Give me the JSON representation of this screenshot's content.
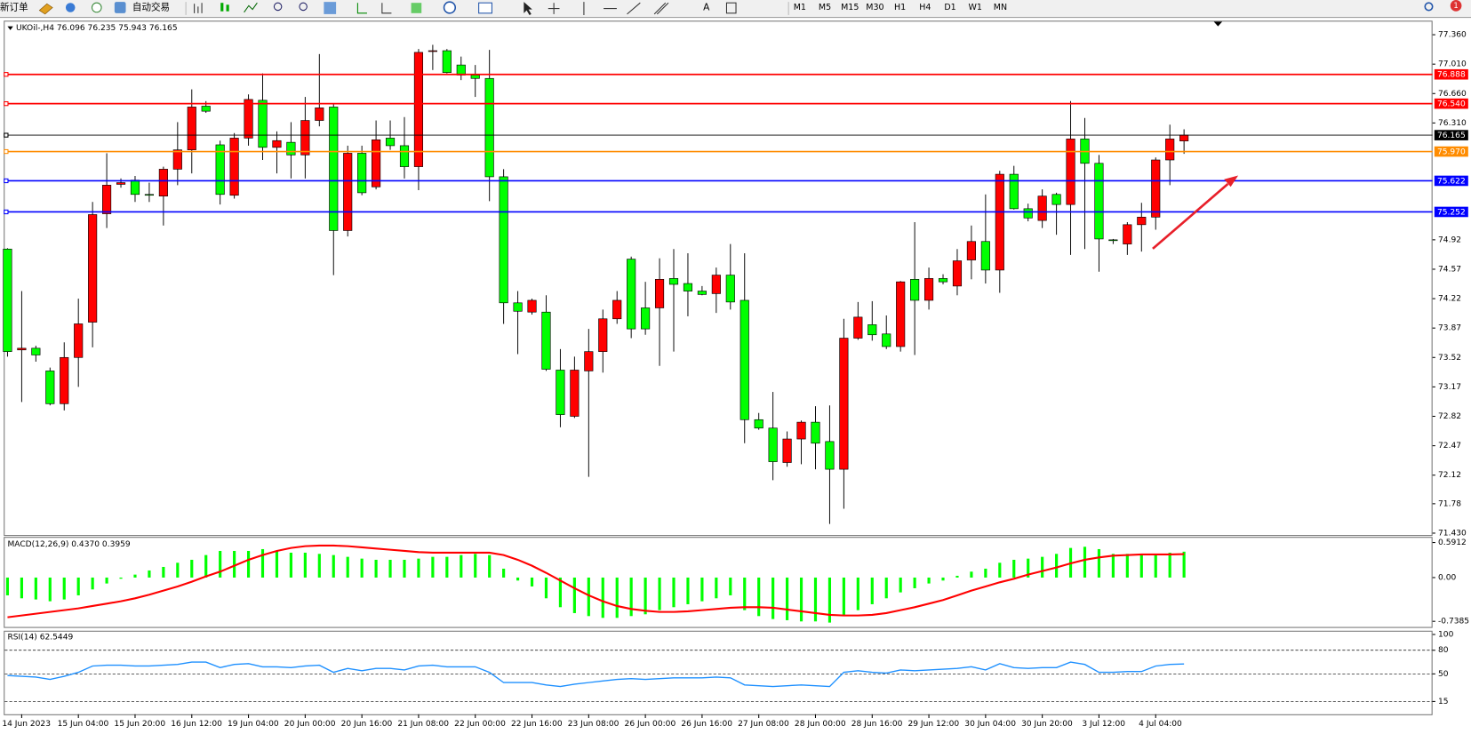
{
  "toolbar": {
    "new_order": "新订单",
    "auto_trading": "自动交易",
    "timeframes": [
      "M1",
      "M5",
      "M15",
      "M30",
      "H1",
      "H4",
      "D1",
      "W1",
      "MN"
    ],
    "badge": "1"
  },
  "chart_data": [
    {
      "type": "candlestick",
      "title": "UKOil-,H4 76.096 76.235 75.943 76.165",
      "categories": [
        null,
        "14 Jun 2023",
        null,
        null,
        null,
        "15 Jun 04:00",
        null,
        null,
        null,
        "15 Jun 20:00",
        null,
        null,
        null,
        "16 Jun 12:00",
        null,
        null,
        null,
        "19 Jun 04:00",
        null,
        null,
        null,
        "20 Jun 00:00",
        null,
        null,
        null,
        "20 Jun 16:00",
        null,
        null,
        null,
        "21 Jun 08:00",
        null,
        null,
        null,
        "22 Jun 00:00",
        null,
        null,
        null,
        "22 Jun 16:00",
        null,
        null,
        null,
        "23 Jun 08:00",
        null,
        null,
        null,
        "26 Jun 00:00",
        null,
        null,
        null,
        "26 Jun 16:00",
        null,
        null,
        null,
        "27 Jun 08:00",
        null,
        null,
        null,
        "28 Jun 00:00",
        null,
        null,
        null,
        "28 Jun 16:00",
        null,
        null,
        null,
        "29 Jun 12:00",
        null,
        null,
        null,
        "30 Jun 04:00",
        null,
        null,
        null,
        "30 Jun 20:00",
        null,
        null,
        null,
        "3 Jul 12:00",
        null,
        null,
        null,
        "4 Jul 04:00",
        null,
        null
      ],
      "open": [
        74.81,
        73.61,
        73.63,
        73.36,
        72.97,
        73.52,
        73.94,
        75.23,
        75.58,
        75.63,
        75.46,
        75.44,
        75.76,
        75.99,
        76.51,
        76.05,
        75.45,
        76.13,
        76.58,
        76.02,
        76.08,
        75.93,
        76.34,
        76.5,
        75.03,
        75.95,
        75.55,
        76.13,
        76.04,
        75.79,
        77.16,
        77.17,
        77.0,
        76.88,
        76.84,
        75.67,
        74.17,
        74.06,
        74.06,
        73.37,
        72.82,
        73.36,
        73.59,
        73.98,
        74.69,
        74.11,
        74.11,
        74.46,
        74.4,
        74.31,
        74.28,
        74.5,
        74.2,
        72.78,
        72.68,
        72.27,
        72.55,
        72.75,
        72.52,
        72.19,
        73.75,
        73.91,
        73.8,
        73.65,
        74.45,
        74.2,
        74.46,
        74.37,
        74.68,
        74.9,
        74.56,
        75.7,
        75.29,
        75.15,
        75.46,
        75.34,
        76.12,
        75.83,
        74.92,
        74.87,
        75.1,
        75.19,
        75.87,
        76.096
      ],
      "high": [
        74.82,
        74.31,
        73.66,
        73.4,
        73.7,
        74.22,
        75.37,
        75.95,
        75.65,
        75.68,
        75.6,
        75.79,
        76.32,
        76.71,
        76.57,
        76.1,
        76.19,
        76.65,
        76.9,
        76.21,
        76.32,
        76.62,
        77.13,
        76.54,
        76.04,
        76.04,
        76.34,
        76.34,
        76.38,
        77.19,
        77.24,
        77.19,
        77.1,
        77.0,
        77.18,
        75.76,
        74.31,
        74.22,
        74.26,
        73.62,
        73.53,
        73.86,
        74.09,
        74.31,
        74.72,
        74.42,
        74.7,
        74.81,
        74.76,
        74.37,
        74.59,
        74.87,
        74.76,
        72.86,
        73.11,
        72.64,
        72.77,
        72.94,
        72.95,
        73.98,
        74.18,
        74.19,
        74.02,
        74.43,
        75.13,
        74.59,
        74.51,
        74.81,
        75.09,
        75.46,
        75.74,
        75.8,
        75.35,
        75.52,
        75.48,
        76.57,
        76.37,
        75.93,
        74.93,
        75.13,
        75.36,
        75.9,
        76.29,
        76.235
      ],
      "low": [
        73.53,
        72.99,
        73.47,
        72.95,
        72.89,
        73.17,
        73.64,
        75.06,
        75.54,
        75.37,
        75.37,
        75.09,
        75.57,
        75.71,
        76.43,
        75.34,
        75.41,
        76.04,
        75.87,
        75.71,
        75.65,
        75.65,
        76.27,
        74.5,
        74.96,
        75.45,
        75.52,
        75.99,
        75.65,
        75.51,
        76.94,
        76.9,
        76.82,
        76.62,
        75.38,
        73.92,
        73.56,
        74.03,
        73.36,
        72.69,
        72.8,
        72.1,
        73.34,
        73.92,
        73.75,
        73.79,
        73.42,
        73.59,
        74.01,
        74.26,
        74.05,
        74.09,
        72.5,
        72.66,
        72.06,
        72.22,
        72.25,
        72.19,
        71.54,
        71.72,
        73.73,
        73.72,
        73.62,
        73.59,
        73.55,
        74.09,
        74.39,
        74.26,
        74.45,
        74.4,
        74.29,
        75.28,
        75.14,
        75.06,
        74.98,
        74.74,
        74.81,
        74.54,
        74.87,
        74.74,
        74.78,
        75.04,
        75.57,
        75.943
      ],
      "close": [
        73.59,
        73.63,
        73.55,
        72.97,
        73.52,
        73.92,
        75.22,
        75.57,
        75.6,
        75.46,
        75.45,
        75.76,
        75.99,
        76.5,
        76.45,
        75.46,
        76.13,
        76.59,
        76.02,
        76.1,
        75.93,
        76.34,
        76.49,
        75.03,
        75.95,
        75.48,
        76.11,
        76.04,
        75.79,
        77.15,
        77.17,
        76.91,
        76.88,
        76.84,
        75.67,
        74.17,
        74.07,
        74.2,
        73.38,
        72.84,
        73.37,
        73.59,
        73.98,
        74.2,
        73.86,
        73.86,
        74.45,
        74.39,
        74.31,
        74.27,
        74.5,
        74.18,
        72.78,
        72.68,
        72.28,
        72.55,
        72.75,
        72.5,
        72.19,
        73.75,
        74.0,
        73.79,
        73.65,
        74.42,
        74.2,
        74.46,
        74.42,
        74.67,
        74.9,
        74.56,
        75.7,
        75.29,
        75.18,
        75.44,
        75.34,
        76.12,
        75.83,
        74.93,
        74.91,
        75.1,
        75.19,
        75.87,
        76.12,
        76.165
      ],
      "up_color": "#ff0000",
      "down_color": "#00ff00",
      "ylim": [
        71.408,
        77.527
      ],
      "yticks": [
        {
          "value": 77.36,
          "label": "77.360"
        },
        {
          "value": 77.01,
          "label": "77.010"
        },
        {
          "value": 76.66,
          "label": "76.660"
        },
        {
          "value": 76.31,
          "label": "76.310"
        },
        74.92,
        74.57,
        74.22,
        73.87,
        73.52,
        73.17,
        72.82,
        72.47,
        72.12,
        71.78,
        {
          "value": 71.43,
          "label": "71.430"
        }
      ],
      "levels": [
        {
          "value": 76.888,
          "color": "#ff0000"
        },
        {
          "value": 76.54,
          "label": "76.540",
          "color": "#ff0000"
        },
        {
          "value": 75.97,
          "label": "75.970",
          "color": "#ff8c00"
        },
        {
          "value": 75.622,
          "color": "#0000ff"
        },
        {
          "value": 75.252,
          "color": "#0000ff"
        }
      ],
      "bid": 76.165
    },
    {
      "type": "macd",
      "title": "MACD(12,26,9) 0.4370 0.3959",
      "histogram": {
        "color": "#00ff00",
        "values": [
          -0.3,
          -0.35,
          -0.37,
          -0.4,
          -0.37,
          -0.3,
          -0.2,
          -0.1,
          -0.02,
          0.05,
          0.12,
          0.18,
          0.25,
          0.3,
          0.38,
          0.45,
          0.45,
          0.45,
          0.48,
          0.45,
          0.42,
          0.42,
          0.4,
          0.38,
          0.35,
          0.32,
          0.3,
          0.3,
          0.3,
          0.32,
          0.35,
          0.35,
          0.38,
          0.4,
          0.38,
          0.15,
          -0.05,
          -0.15,
          -0.35,
          -0.5,
          -0.6,
          -0.65,
          -0.68,
          -0.68,
          -0.65,
          -0.62,
          -0.55,
          -0.5,
          -0.45,
          -0.4,
          -0.35,
          -0.3,
          -0.55,
          -0.65,
          -0.7,
          -0.72,
          -0.74,
          -0.74,
          -0.76,
          -0.65,
          -0.55,
          -0.45,
          -0.35,
          -0.25,
          -0.18,
          -0.1,
          -0.05,
          0.03,
          0.1,
          0.15,
          0.25,
          0.3,
          0.32,
          0.35,
          0.4,
          0.5,
          0.52,
          0.48,
          0.4,
          0.4,
          0.4,
          0.4,
          0.42,
          0.437
        ]
      },
      "signal": {
        "color": "#ff0000",
        "values": [
          -0.67,
          -0.64,
          -0.61,
          -0.58,
          -0.55,
          -0.52,
          -0.48,
          -0.44,
          -0.4,
          -0.35,
          -0.29,
          -0.22,
          -0.15,
          -0.07,
          0.02,
          0.1,
          0.2,
          0.3,
          0.38,
          0.45,
          0.5,
          0.53,
          0.54,
          0.54,
          0.53,
          0.51,
          0.49,
          0.47,
          0.45,
          0.43,
          0.42,
          0.42,
          0.42,
          0.42,
          0.42,
          0.38,
          0.3,
          0.2,
          0.08,
          -0.05,
          -0.18,
          -0.3,
          -0.4,
          -0.48,
          -0.53,
          -0.56,
          -0.58,
          -0.58,
          -0.57,
          -0.55,
          -0.53,
          -0.51,
          -0.5,
          -0.5,
          -0.51,
          -0.54,
          -0.57,
          -0.6,
          -0.63,
          -0.64,
          -0.64,
          -0.63,
          -0.6,
          -0.55,
          -0.5,
          -0.44,
          -0.38,
          -0.3,
          -0.22,
          -0.15,
          -0.08,
          -0.02,
          0.05,
          0.11,
          0.17,
          0.24,
          0.3,
          0.34,
          0.37,
          0.38,
          0.39,
          0.39,
          0.39,
          0.3959
        ]
      },
      "ylim": [
        -0.834,
        0.687
      ],
      "yticks": [
        0.5912,
        {
          "value": 0,
          "label": "0.00"
        },
        -0.7385
      ]
    },
    {
      "type": "rsi",
      "title": "RSI(14) 62.5449",
      "color": "#1e90ff",
      "values": [
        48,
        47,
        46,
        43,
        47,
        52,
        60,
        61,
        61,
        60,
        60,
        61,
        62,
        65,
        65,
        58,
        62,
        63,
        59,
        59,
        58,
        60,
        61,
        52,
        57,
        54,
        57,
        57,
        55,
        60,
        61,
        59,
        59,
        59,
        52,
        39,
        39,
        39,
        36,
        34,
        37,
        39,
        41,
        43,
        44,
        43,
        44,
        45,
        45,
        45,
        46,
        45,
        36,
        35,
        34,
        35,
        36,
        35,
        34,
        52,
        54,
        52,
        51,
        55,
        54,
        55,
        56,
        57,
        59,
        55,
        63,
        58,
        57,
        58,
        58,
        65,
        62,
        52,
        52,
        53,
        53,
        60,
        62,
        62.5449
      ],
      "ylim": [
        0,
        100
      ],
      "yticks": [
        100,
        80,
        50,
        15
      ],
      "levels": [
        80,
        50,
        15
      ]
    }
  ]
}
